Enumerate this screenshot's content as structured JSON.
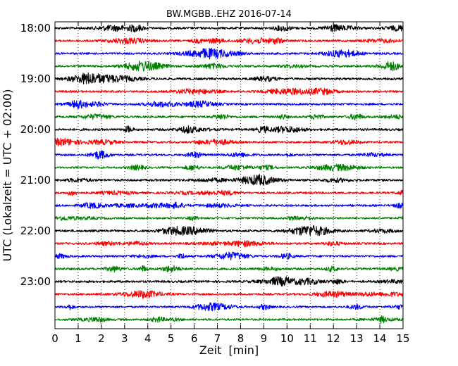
{
  "chart_data": {
    "type": "line",
    "title": "BW.MGBB..EHZ 2016-07-14",
    "xlabel": "Zeit  [min]",
    "ylabel": "UTC (Lokalzeit = UTC + 02:00)",
    "xlim": [
      0,
      15
    ],
    "x_ticks": [
      "0",
      "1",
      "2",
      "3",
      "4",
      "5",
      "6",
      "7",
      "8",
      "9",
      "10",
      "11",
      "12",
      "13",
      "14",
      "15"
    ],
    "y_ticks": [
      "18:00",
      "19:00",
      "20:00",
      "21:00",
      "22:00",
      "23:00"
    ],
    "grid": "x-dotted",
    "trace_interval_min": 15,
    "start_time": "18:00",
    "colors": [
      "#000000",
      "#ff0000",
      "#0000ff",
      "#008000"
    ],
    "series": [
      {
        "start": "18:00",
        "color": "#000000",
        "amplitude": 0.9
      },
      {
        "start": "18:15",
        "color": "#ff0000",
        "amplitude": 0.8
      },
      {
        "start": "18:30",
        "color": "#0000ff",
        "amplitude": 0.8
      },
      {
        "start": "18:45",
        "color": "#008000",
        "amplitude": 0.85
      },
      {
        "start": "19:00",
        "color": "#000000",
        "amplitude": 0.9
      },
      {
        "start": "19:15",
        "color": "#ff0000",
        "amplitude": 0.8
      },
      {
        "start": "19:30",
        "color": "#0000ff",
        "amplitude": 0.8
      },
      {
        "start": "19:45",
        "color": "#008000",
        "amplitude": 0.85
      },
      {
        "start": "20:00",
        "color": "#000000",
        "amplitude": 0.9
      },
      {
        "start": "20:15",
        "color": "#ff0000",
        "amplitude": 0.8
      },
      {
        "start": "20:30",
        "color": "#0000ff",
        "amplitude": 0.8
      },
      {
        "start": "20:45",
        "color": "#008000",
        "amplitude": 0.75
      },
      {
        "start": "21:00",
        "color": "#000000",
        "amplitude": 0.9
      },
      {
        "start": "21:15",
        "color": "#ff0000",
        "amplitude": 0.8
      },
      {
        "start": "21:30",
        "color": "#0000ff",
        "amplitude": 0.8
      },
      {
        "start": "21:45",
        "color": "#008000",
        "amplitude": 0.75
      },
      {
        "start": "22:00",
        "color": "#000000",
        "amplitude": 0.9
      },
      {
        "start": "22:15",
        "color": "#ff0000",
        "amplitude": 0.8
      },
      {
        "start": "22:30",
        "color": "#0000ff",
        "amplitude": 0.8
      },
      {
        "start": "22:45",
        "color": "#008000",
        "amplitude": 0.9
      },
      {
        "start": "23:00",
        "color": "#000000",
        "amplitude": 0.9
      },
      {
        "start": "23:15",
        "color": "#ff0000",
        "amplitude": 0.8
      },
      {
        "start": "23:30",
        "color": "#0000ff",
        "amplitude": 0.75
      },
      {
        "start": "23:45",
        "color": "#008000",
        "amplitude": 0.8
      }
    ]
  }
}
